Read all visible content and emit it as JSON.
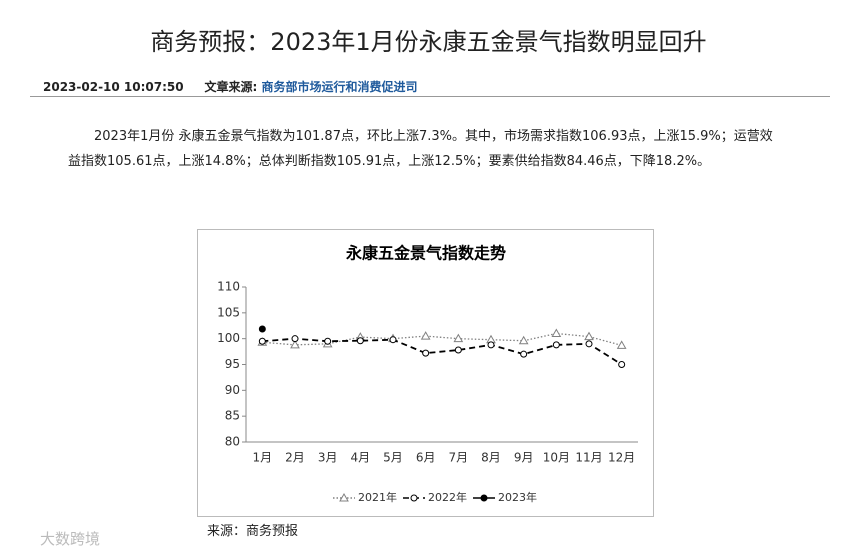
{
  "header": {
    "title": "商务预报：2023年1月份永康五金景气指数明显回升"
  },
  "meta": {
    "datetime": "2023-02-10 10:07:50",
    "source_label": "文章来源:",
    "source": "商务部市场运行和消费促进司"
  },
  "body": "2023年1月份 永康五金景气指数为101.87点，环比上涨7.3%。其中，市场需求指数106.93点，上涨15.9%；运营效益指数105.61点，上涨14.8%；总体判断指数105.91点，上涨12.5%；要素供给指数84.46点，下降18.2%。",
  "chart_data": {
    "type": "line",
    "title": "永康五金景气指数走势",
    "categories": [
      "1月",
      "2月",
      "3月",
      "4月",
      "5月",
      "6月",
      "7月",
      "8月",
      "9月",
      "10月",
      "11月",
      "12月"
    ],
    "series": [
      {
        "name": "2021年",
        "color": "#808080",
        "line_style": "dotted",
        "marker": "triangle",
        "values": [
          99.3,
          98.8,
          99.0,
          100.3,
          100.0,
          100.5,
          100.0,
          99.8,
          99.6,
          101.0,
          100.4,
          98.7
        ]
      },
      {
        "name": "2022年",
        "color": "#000000",
        "line_style": "dashed",
        "marker": "circle",
        "values": [
          99.5,
          100.0,
          99.5,
          99.6,
          99.8,
          97.2,
          97.8,
          98.8,
          97.0,
          98.8,
          99.0,
          95.0
        ]
      },
      {
        "name": "2023年",
        "color": "#000000",
        "line_style": "solid",
        "marker": "dot",
        "values": [
          101.87,
          null,
          null,
          null,
          null,
          null,
          null,
          null,
          null,
          null,
          null,
          null
        ]
      }
    ],
    "ylim": [
      80,
      110
    ],
    "yticks": [
      80,
      85,
      90,
      95,
      100,
      105,
      110
    ],
    "grid": false,
    "legend": "bottom"
  },
  "source": "来源：商务预报",
  "watermark": "大数跨境"
}
